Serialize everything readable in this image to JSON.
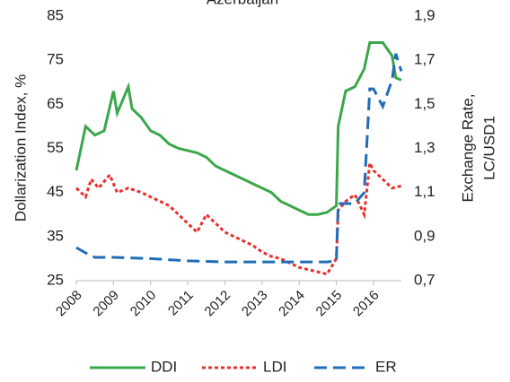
{
  "chart_data": {
    "type": "line",
    "title": "Azerbaijan",
    "ylabel": "Dollarization Index, %",
    "y2label": [
      "Exchange Rate,",
      "LC/USD1"
    ],
    "categories_labels": null,
    "xlim": [
      2008,
      2016.75
    ],
    "xticks": [
      2008,
      2009,
      2010,
      2011,
      2012,
      2013,
      2014,
      2015,
      2016
    ],
    "ylim": [
      25,
      85
    ],
    "yticks": [
      25,
      35,
      45,
      55,
      65,
      75,
      85
    ],
    "y2lim": [
      0.7,
      1.9
    ],
    "y2ticks": [
      {
        "value": 0.7,
        "label": "0,7"
      },
      {
        "value": 0.9,
        "label": "0,9"
      },
      {
        "value": 1.1,
        "label": "1,1"
      },
      {
        "value": 1.3,
        "label": "1,3"
      },
      {
        "value": 1.5,
        "label": "1,5"
      },
      {
        "value": 1.7,
        "label": "1,7"
      },
      {
        "value": 1.9,
        "label": "1,9"
      }
    ],
    "series": [
      {
        "name": "DDI",
        "color": "#3aa84a",
        "dash": "solid",
        "x": [
          2008,
          2008.25,
          2008.5,
          2008.75,
          2009,
          2009.1,
          2009.4,
          2009.5,
          2009.75,
          2010,
          2010.25,
          2010.5,
          2010.75,
          2011,
          2011.25,
          2011.5,
          2011.75,
          2012,
          2012.25,
          2012.5,
          2012.75,
          2013,
          2013.25,
          2013.5,
          2013.75,
          2014,
          2014.25,
          2014.5,
          2014.75,
          2015,
          2015.05,
          2015.25,
          2015.5,
          2015.75,
          2015.9,
          2016,
          2016.25,
          2016.5,
          2016.6,
          2016.75
        ],
        "values": [
          50,
          60,
          58,
          59,
          68,
          63,
          69,
          64,
          62,
          59,
          58,
          56,
          55,
          54.5,
          54,
          53,
          51,
          50,
          49,
          48,
          47,
          46,
          45,
          43,
          42,
          41,
          40,
          40,
          40.5,
          42,
          60,
          68,
          69,
          73,
          79,
          79,
          79,
          76,
          71,
          70.5
        ]
      },
      {
        "name": "LDI",
        "color": "#e8302e",
        "dash": "dot",
        "x": [
          2008,
          2008.25,
          2008.4,
          2008.6,
          2008.9,
          2009.1,
          2009.4,
          2009.75,
          2010,
          2010.25,
          2010.5,
          2010.75,
          2011,
          2011.25,
          2011.5,
          2011.75,
          2012,
          2012.25,
          2012.5,
          2012.75,
          2013,
          2013.25,
          2013.5,
          2013.75,
          2014,
          2014.25,
          2014.5,
          2014.75,
          2015,
          2015.05,
          2015.25,
          2015.5,
          2015.75,
          2015.9,
          2016,
          2016.25,
          2016.5,
          2016.75
        ],
        "values": [
          46,
          44,
          48,
          46,
          49,
          45,
          46,
          45,
          44,
          43,
          42,
          40,
          38,
          36,
          40,
          38,
          36,
          35,
          34,
          33,
          31.5,
          30.5,
          30,
          29,
          28,
          27.5,
          27,
          26.5,
          30,
          41,
          43,
          44.5,
          40,
          51.7,
          50,
          48,
          46,
          46.5
        ]
      },
      {
        "name": "ER",
        "color": "#1f6db5",
        "dash": "dash",
        "axis": "y2",
        "x": [
          2008,
          2008.25,
          2008.5,
          2009,
          2010,
          2011,
          2012,
          2013,
          2014,
          2014.75,
          2015,
          2015.05,
          2015.5,
          2015.75,
          2015.9,
          2016,
          2016.25,
          2016.5,
          2016.6,
          2016.75
        ],
        "values": [
          0.85,
          0.826,
          0.806,
          0.806,
          0.8,
          0.79,
          0.785,
          0.785,
          0.785,
          0.785,
          0.79,
          1.05,
          1.05,
          1.1,
          1.57,
          1.57,
          1.49,
          1.61,
          1.73,
          1.65
        ]
      }
    ]
  }
}
